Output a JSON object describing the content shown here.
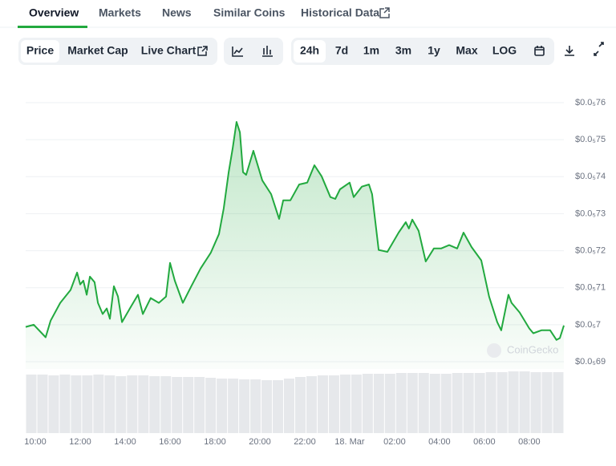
{
  "tabs": [
    "Overview",
    "Markets",
    "News",
    "Similar Coins",
    "Historical Data"
  ],
  "toolbar": {
    "chart_kinds": [
      "Price",
      "Market Cap",
      "Live Chart"
    ],
    "ranges": [
      "24h",
      "7d",
      "1m",
      "3m",
      "1y",
      "Max",
      "LOG"
    ]
  },
  "watermark": "CoinGecko",
  "chart_data": {
    "type": "line",
    "x": [
      9.57,
      9.93,
      10.46,
      10.68,
      11.11,
      11.57,
      11.86,
      12.0,
      12.14,
      12.29,
      12.43,
      12.64,
      12.79,
      13.0,
      13.18,
      13.32,
      13.5,
      13.68,
      13.86,
      14.21,
      14.57,
      14.79,
      15.14,
      15.5,
      15.82,
      16.0,
      16.21,
      16.57,
      16.93,
      17.36,
      17.82,
      18.18,
      18.39,
      18.61,
      18.79,
      18.96,
      19.11,
      19.25,
      19.39,
      19.71,
      20.11,
      20.5,
      20.86,
      21.04,
      21.36,
      21.75,
      22.11,
      22.43,
      22.75,
      23.14,
      23.36,
      23.57,
      24.0,
      24.18,
      24.54,
      24.86,
      25.0,
      25.29,
      25.68,
      26.18,
      26.5,
      26.64,
      26.79,
      27.07,
      27.39,
      27.75,
      28.07,
      28.43,
      28.79,
      29.07,
      29.43,
      29.86,
      30.21,
      30.57,
      30.75,
      31.07,
      31.21,
      31.57,
      32.0,
      32.18,
      32.54,
      32.93,
      33.21,
      33.36,
      33.54
    ],
    "series": [
      {
        "color": "#22a93f",
        "values": [
          6.994e-06,
          7e-06,
          6.966e-06,
          7.011e-06,
          7.059e-06,
          7.094e-06,
          7.141e-06,
          7.109e-06,
          7.119e-06,
          7.081e-06,
          7.13e-06,
          7.115e-06,
          7.059e-06,
          7.029e-06,
          7.044e-06,
          7.016e-06,
          7.104e-06,
          7.076e-06,
          7.007e-06,
          7.044e-06,
          7.081e-06,
          7.029e-06,
          7.072e-06,
          7.059e-06,
          7.076e-06,
          7.167e-06,
          7.119e-06,
          7.059e-06,
          7.102e-06,
          7.152e-06,
          7.195e-06,
          7.245e-06,
          7.314e-06,
          7.412e-06,
          7.477e-06,
          7.548e-06,
          7.52e-06,
          7.412e-06,
          7.405e-06,
          7.47e-06,
          7.39e-06,
          7.353e-06,
          7.286e-06,
          7.336e-06,
          7.336e-06,
          7.379e-06,
          7.384e-06,
          7.431e-06,
          7.401e-06,
          7.345e-06,
          7.34e-06,
          7.366e-06,
          7.384e-06,
          7.345e-06,
          7.373e-06,
          7.379e-06,
          7.353e-06,
          7.202e-06,
          7.197e-06,
          7.249e-06,
          7.277e-06,
          7.26e-06,
          7.284e-06,
          7.254e-06,
          7.171e-06,
          7.206e-06,
          7.206e-06,
          7.215e-06,
          7.206e-06,
          7.249e-06,
          7.21e-06,
          7.174e-06,
          7.076e-06,
          7.007e-06,
          6.985e-06,
          7.081e-06,
          7.059e-06,
          7.033e-06,
          6.99e-06,
          6.977e-06,
          6.985e-06,
          6.985e-06,
          6.959e-06,
          6.964e-06,
          6.998e-06
        ]
      }
    ],
    "xlim": [
      9.57,
      33.54
    ],
    "xticks": [
      {
        "value": 10,
        "label": "10:00"
      },
      {
        "value": 12,
        "label": "12:00"
      },
      {
        "value": 14,
        "label": "14:00"
      },
      {
        "value": 16,
        "label": "16:00"
      },
      {
        "value": 18,
        "label": "18:00"
      },
      {
        "value": 20,
        "label": "20:00"
      },
      {
        "value": 22,
        "label": "22:00"
      },
      {
        "value": 24,
        "label": "18. Mar"
      },
      {
        "value": 26,
        "label": "02:00"
      },
      {
        "value": 28,
        "label": "04:00"
      },
      {
        "value": 30,
        "label": "06:00"
      },
      {
        "value": 32,
        "label": "08:00"
      }
    ],
    "ylim": [
      6.9e-06,
      7.6e-06
    ],
    "yticks": [
      {
        "value": 7.6e-06,
        "label": "$0.0₅76"
      },
      {
        "value": 7.5e-06,
        "label": "$0.0₅75"
      },
      {
        "value": 7.4e-06,
        "label": "$0.0₅74"
      },
      {
        "value": 7.3e-06,
        "label": "$0.0₅73"
      },
      {
        "value": 7.2e-06,
        "label": "$0.0₅72"
      },
      {
        "value": 7.1e-06,
        "label": "$0.0₅71"
      },
      {
        "value": 7e-06,
        "label": "$0.0₅7"
      },
      {
        "value": 6.9e-06,
        "label": "$0.0₅69"
      }
    ],
    "grid": true,
    "volume": {
      "color": "#e6e8eb",
      "ylim": [
        0,
        80
      ],
      "values": [
        73,
        73,
        72,
        73,
        72,
        72,
        73,
        72,
        71,
        72,
        72,
        71,
        71,
        70,
        70,
        70,
        69,
        68,
        68,
        67,
        67,
        66,
        66,
        68,
        70,
        71,
        72,
        72,
        73,
        73,
        74,
        74,
        74,
        75,
        75,
        75,
        74,
        74,
        75,
        75,
        75,
        76,
        76,
        77,
        77,
        76,
        76,
        76
      ]
    }
  }
}
